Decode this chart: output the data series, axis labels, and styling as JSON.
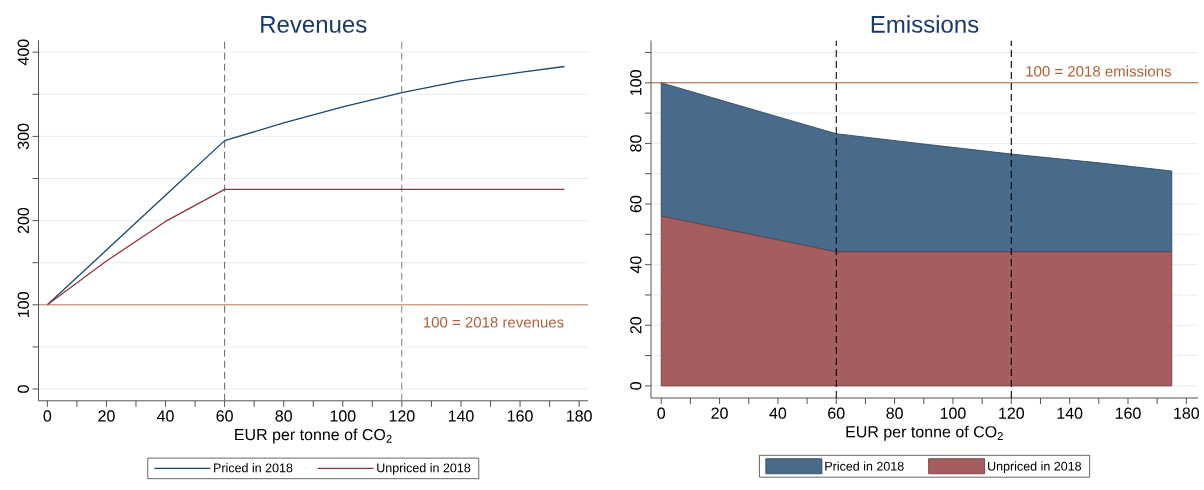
{
  "chart_data": [
    {
      "type": "line",
      "title": "Revenues",
      "xlabel": "EUR per tonne of CO$_{2}$",
      "series": [
        {
          "name": "Priced in 2018",
          "color": "#1a476f",
          "x": [
            0,
            20,
            40,
            60,
            80,
            100,
            120,
            140,
            160,
            175
          ],
          "values": [
            100,
            165,
            230,
            295,
            316,
            335,
            352,
            366,
            376,
            383
          ]
        },
        {
          "name": "Unpriced in 2018",
          "color": "#90353b",
          "x": [
            0,
            20,
            40,
            60,
            175
          ],
          "values": [
            100,
            152,
            199,
            237,
            237
          ]
        }
      ],
      "xlim": [
        -3,
        183
      ],
      "ylim": [
        -14,
        414
      ],
      "xticks": [
        0,
        {
          "value": 10,
          "label": null
        },
        20,
        {
          "value": 30,
          "label": null
        },
        40,
        {
          "value": 50,
          "label": null
        },
        60,
        {
          "value": 70,
          "label": null
        },
        80,
        {
          "value": 90,
          "label": null
        },
        100,
        {
          "value": 110,
          "label": null
        },
        120,
        {
          "value": 130,
          "label": null
        },
        140,
        {
          "value": 150,
          "label": null
        },
        160,
        {
          "value": 170,
          "label": null
        },
        180
      ],
      "yticks": [
        0,
        {
          "value": 50,
          "label": null
        },
        100,
        {
          "value": 150,
          "label": null
        },
        200,
        {
          "value": 250,
          "label": null
        },
        300,
        {
          "value": 350,
          "label": null
        },
        400
      ],
      "grid": "y",
      "legend": "bottom",
      "ref_lines": [
        {
          "axis": "x",
          "value": 60,
          "color": "#6e6e6e",
          "line_style": "dashed"
        },
        {
          "axis": "x",
          "value": 120,
          "color": "#6e6e6e",
          "line_style": "dashed"
        },
        {
          "axis": "y",
          "value": 100,
          "label": "100 = 2018 revenues",
          "color": "#b0603a"
        }
      ]
    },
    {
      "type": "area",
      "title": "Emissions",
      "xlabel": "EUR per tonne of CO$_{2}$",
      "stacked": true,
      "x": [
        0,
        60,
        90,
        120,
        150,
        175
      ],
      "series": [
        {
          "name": "Unpriced in 2018",
          "color": "#a55d60",
          "values": [
            56,
            44.2,
            44.2,
            44.2,
            44.2,
            44.2
          ]
        },
        {
          "name": "Priced in 2018",
          "color": "#486b8b",
          "values": [
            44,
            39,
            35.6,
            32.3,
            29.4,
            26.7
          ]
        }
      ],
      "xlim": [
        -3.5,
        184
      ],
      "ylim": [
        -4,
        114
      ],
      "xticks": [
        0,
        {
          "value": 10,
          "label": null
        },
        20,
        {
          "value": 30,
          "label": null
        },
        40,
        {
          "value": 50,
          "label": null
        },
        60,
        {
          "value": 70,
          "label": null
        },
        80,
        {
          "value": 90,
          "label": null
        },
        100,
        {
          "value": 110,
          "label": null
        },
        120,
        {
          "value": 130,
          "label": null
        },
        140,
        {
          "value": 150,
          "label": null
        },
        160,
        {
          "value": 170,
          "label": null
        },
        180
      ],
      "yticks": [
        0,
        {
          "value": 10,
          "label": null
        },
        20,
        {
          "value": 30,
          "label": null
        },
        40,
        {
          "value": 50,
          "label": null
        },
        60,
        {
          "value": 70,
          "label": null
        },
        80,
        {
          "value": 90,
          "label": null
        },
        100,
        {
          "value": 110,
          "label": null
        }
      ],
      "grid": "y",
      "legend": "bottom",
      "ref_lines": [
        {
          "axis": "x",
          "value": 60,
          "color": "#000000",
          "line_style": "dashed"
        },
        {
          "axis": "x",
          "value": 120,
          "color": "#000000",
          "line_style": "dashed"
        },
        {
          "axis": "y",
          "value": 100,
          "label": "100 = 2018 emissions",
          "color": "#b0603a"
        }
      ]
    }
  ]
}
